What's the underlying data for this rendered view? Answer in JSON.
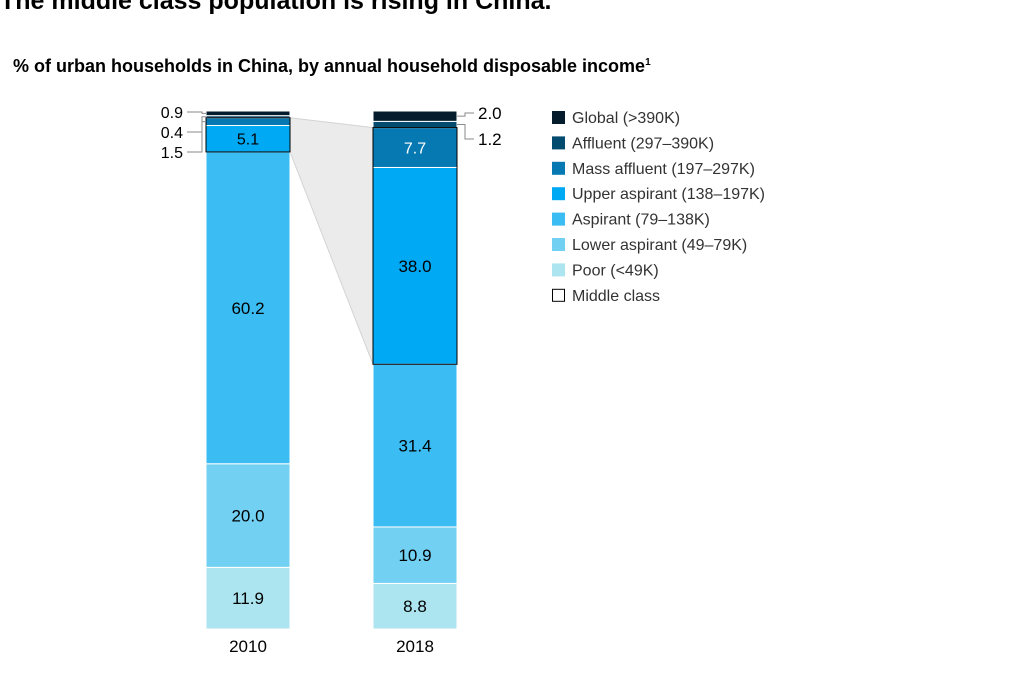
{
  "title": "The middle class population is rising in China.",
  "subtitle": "% of urban households in China, by annual household disposable income",
  "subtitle_footnote": "1",
  "colors": {
    "global": "#051c2c",
    "affluent": "#034b6f",
    "mass_affluent": "#0679b2",
    "upper_aspirant": "#00a9f4",
    "aspirant": "#3bbcf2",
    "lower_aspirant": "#72d0f2",
    "poor": "#ace5f0",
    "middle_class_outline": "#000000",
    "highlight_band": "#ebebeb"
  },
  "chart_data": {
    "type": "bar",
    "stacked": true,
    "categories": [
      "2010",
      "2018"
    ],
    "series": [
      {
        "name": "Poor (<49K)",
        "key": "poor",
        "values": [
          11.9,
          8.8
        ]
      },
      {
        "name": "Lower aspirant (49–79K)",
        "key": "lower_aspirant",
        "values": [
          20.0,
          10.9
        ]
      },
      {
        "name": "Aspirant (79–138K)",
        "key": "aspirant",
        "values": [
          60.2,
          31.4
        ]
      },
      {
        "name": "Upper aspirant (138–197K)",
        "key": "upper_aspirant",
        "values": [
          5.1,
          38.0
        ]
      },
      {
        "name": "Mass affluent (197–297K)",
        "key": "mass_affluent",
        "values": [
          1.5,
          7.7
        ]
      },
      {
        "name": "Affluent (297–390K)",
        "key": "affluent",
        "values": [
          0.4,
          1.2
        ]
      },
      {
        "name": "Global (>390K)",
        "key": "global",
        "values": [
          0.9,
          2.0
        ]
      }
    ],
    "data_labels": {
      "2010": [
        "11.9",
        "20.0",
        "60.2",
        "5.1",
        "1.5",
        "0.4",
        "0.9"
      ],
      "2018": [
        "8.8",
        "10.9",
        "31.4",
        "38.0",
        "7.7",
        "1.2",
        "2.0"
      ]
    },
    "middle_class": {
      "name": "Middle class",
      "series": [
        "upper_aspirant",
        "mass_affluent"
      ]
    },
    "legend": {
      "position": "right",
      "items": [
        {
          "label": "Global (>390K)",
          "key": "global"
        },
        {
          "label": "Affluent (297–390K)",
          "key": "affluent"
        },
        {
          "label": "Mass affluent (197–297K)",
          "key": "mass_affluent"
        },
        {
          "label": "Upper aspirant (138–197K)",
          "key": "upper_aspirant"
        },
        {
          "label": "Aspirant (79–138K)",
          "key": "aspirant"
        },
        {
          "label": "Lower aspirant (49–79K)",
          "key": "lower_aspirant"
        },
        {
          "label": "Poor (<49K)",
          "key": "poor"
        },
        {
          "label": "Middle class",
          "key": "middle_class"
        }
      ]
    },
    "ylim": [
      0,
      100
    ],
    "grid": false,
    "xlabel": "",
    "ylabel": ""
  }
}
